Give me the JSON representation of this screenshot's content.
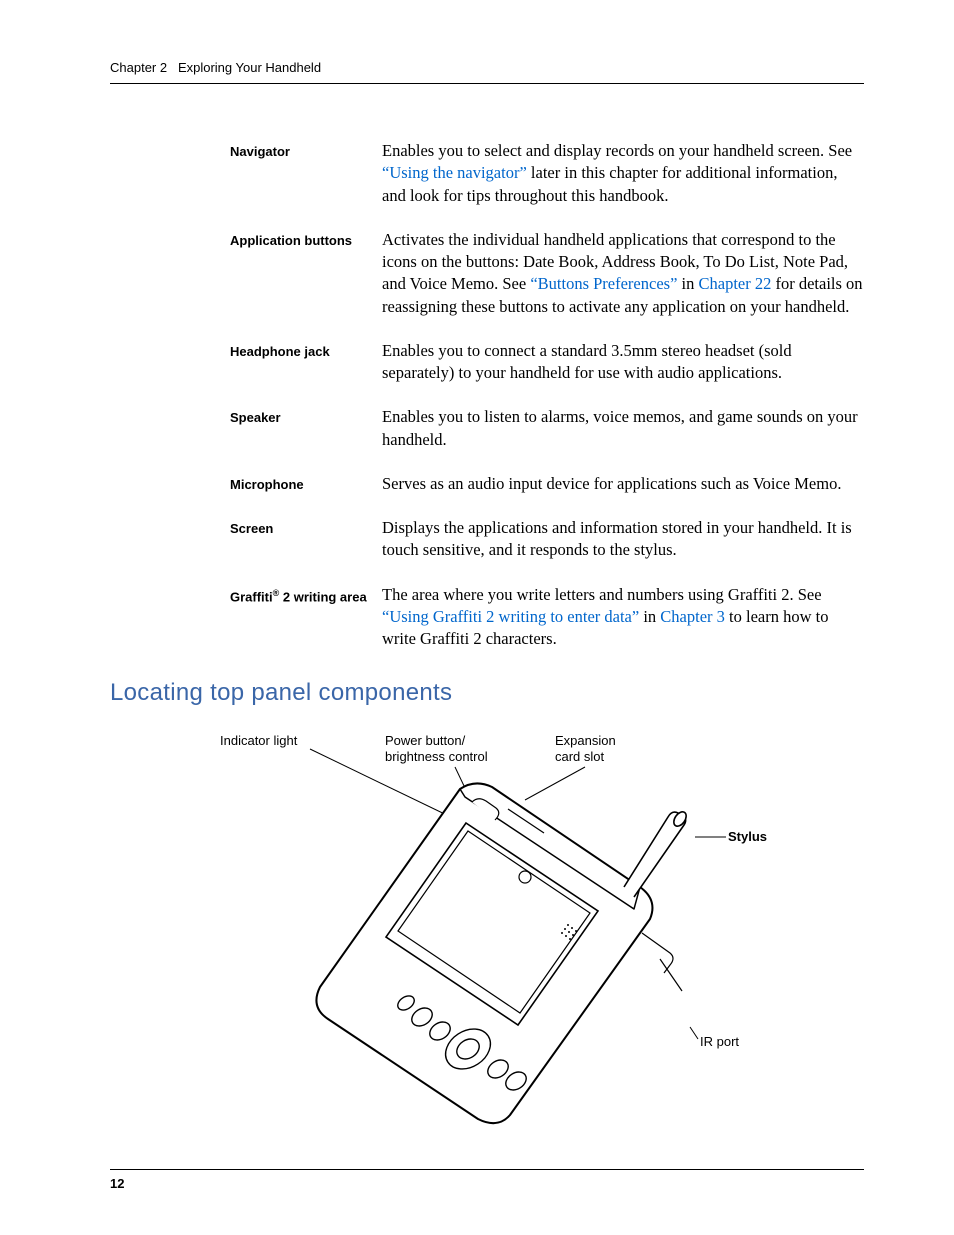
{
  "header": {
    "chapter_label": "Chapter 2",
    "chapter_title": "Exploring Your Handheld"
  },
  "definitions": [
    {
      "term": "Navigator",
      "desc": [
        {
          "t": "Enables you to select and display records on your handheld screen. See "
        },
        {
          "t": "“Using the navigator”",
          "link": true
        },
        {
          "t": " later in this chapter for additional information, and look for tips throughout this handbook."
        }
      ]
    },
    {
      "term": "Application buttons",
      "desc": [
        {
          "t": "Activates the individual handheld applications that correspond to the icons on the buttons: Date Book, Address Book, To Do List, Note Pad, and Voice Memo. See "
        },
        {
          "t": "“Buttons Preferences”",
          "link": true
        },
        {
          "t": " in "
        },
        {
          "t": "Chapter 22",
          "link": true
        },
        {
          "t": " for details on reassigning these buttons to activate any application on your handheld."
        }
      ]
    },
    {
      "term": "Headphone jack",
      "desc": [
        {
          "t": "Enables you to connect a standard 3.5mm stereo headset (sold separately) to your handheld for use with audio applications."
        }
      ]
    },
    {
      "term": "Speaker",
      "desc": [
        {
          "t": "Enables you to listen to alarms, voice memos, and game sounds on your handheld."
        }
      ]
    },
    {
      "term": "Microphone",
      "desc": [
        {
          "t": "Serves as an audio input device for applications such as Voice Memo."
        }
      ]
    },
    {
      "term": "Screen",
      "desc": [
        {
          "t": "Displays the applications and information stored in your handheld. It is touch sensitive, and it responds to the stylus."
        }
      ]
    },
    {
      "term_html": "Graffiti<sup>&reg;</sup> 2 writing area",
      "desc": [
        {
          "t": "The area where you write letters and numbers using Graffiti 2. See "
        },
        {
          "t": "“Using Graffiti 2 writing to enter data”",
          "link": true
        },
        {
          "t": " in "
        },
        {
          "t": "Chapter 3",
          "link": true
        },
        {
          "t": " to learn how to write Graffiti 2 characters."
        }
      ]
    }
  ],
  "section_title": "Locating top panel components",
  "figure": {
    "labels": {
      "indicator": "Indicator light",
      "power1": "Power button/",
      "power2": "brightness control",
      "expansion1": "Expansion",
      "expansion2": "card slot",
      "stylus": "Stylus",
      "ir": "IR port"
    }
  },
  "page_number": "12",
  "colors": {
    "link": "#0066cc",
    "heading": "#3a66a8",
    "text": "#000000"
  }
}
